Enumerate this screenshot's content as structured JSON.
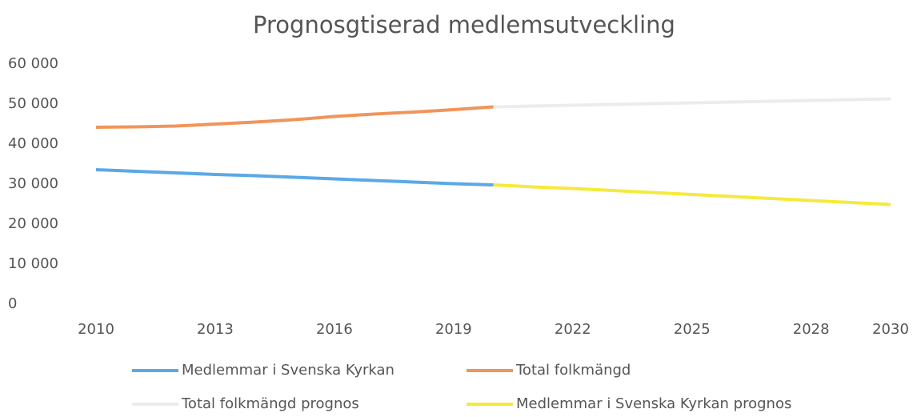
{
  "chart_data": {
    "type": "line",
    "title": "Prognosgtiserad medlemsutveckling",
    "x": [
      2010,
      2011,
      2012,
      2013,
      2014,
      2015,
      2016,
      2017,
      2018,
      2019,
      2020,
      2021,
      2022,
      2023,
      2024,
      2025,
      2026,
      2027,
      2028,
      2029,
      2030
    ],
    "xlim": [
      2010,
      2030
    ],
    "xticks": [
      2010,
      2013,
      2016,
      2019,
      2022,
      2025,
      2028,
      2030
    ],
    "ylim": [
      0,
      60000
    ],
    "yticks": [
      0,
      {
        "value": 10000,
        "label": "10 000"
      },
      {
        "value": 20000,
        "label": "20 000"
      },
      {
        "value": 30000,
        "label": "30 000"
      },
      {
        "value": 40000,
        "label": "40 000"
      },
      {
        "value": 50000,
        "label": "50 000"
      },
      {
        "value": 60000,
        "label": "60 000"
      }
    ],
    "series": [
      {
        "name": "Medlemmar i Svenska Kyrkan",
        "color": "#5aa9e6",
        "values": [
          33600,
          33200,
          32800,
          32400,
          32100,
          31700,
          31300,
          30900,
          30500,
          30100,
          29800,
          null,
          null,
          null,
          null,
          null,
          null,
          null,
          null,
          null,
          null
        ]
      },
      {
        "name": "Total folkmängd",
        "color": "#f0955a",
        "values": [
          44200,
          44300,
          44500,
          45000,
          45500,
          46100,
          46900,
          47500,
          48000,
          48600,
          49300,
          null,
          null,
          null,
          null,
          null,
          null,
          null,
          null,
          null,
          null
        ]
      },
      {
        "name": "Total folkmängd prognos",
        "color": "#ececec",
        "values": [
          null,
          null,
          null,
          null,
          null,
          null,
          null,
          null,
          null,
          null,
          49300,
          49500,
          49700,
          49900,
          50100,
          50300,
          50500,
          50700,
          50900,
          51100,
          51300
        ]
      },
      {
        "name": "Medlemmar i Svenska Kyrkan prognos",
        "color": "#f5ea3c",
        "values": [
          null,
          null,
          null,
          null,
          null,
          null,
          null,
          null,
          null,
          null,
          29800,
          29300,
          28900,
          28400,
          27900,
          27400,
          26900,
          26400,
          25900,
          25400,
          24900
        ]
      }
    ]
  }
}
